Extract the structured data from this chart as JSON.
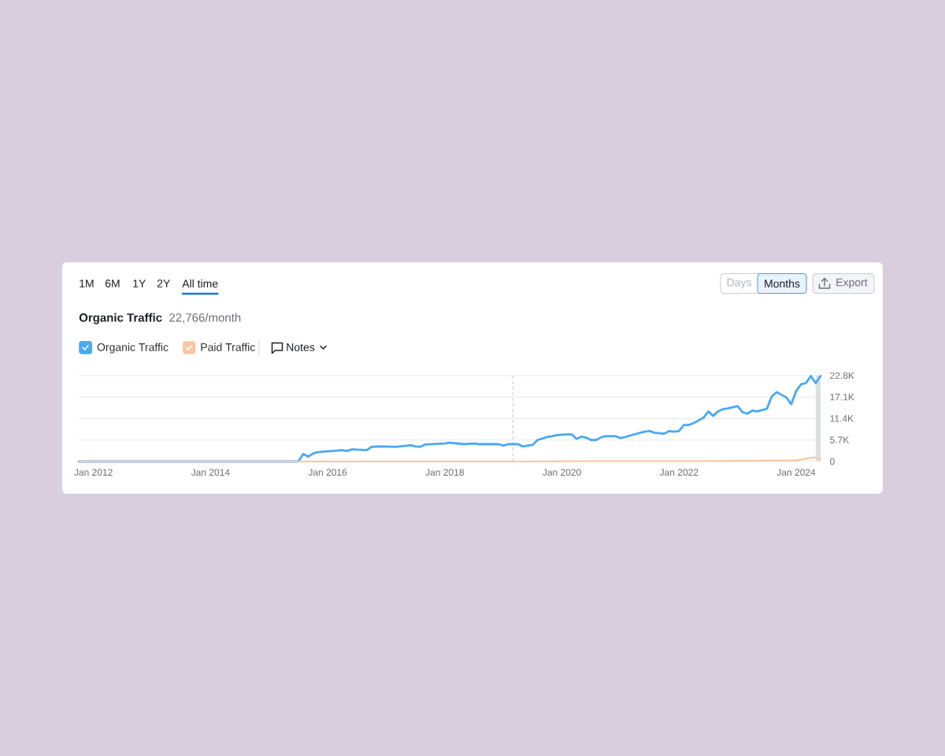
{
  "chart_data": {
    "type": "line",
    "title": "Organic Traffic",
    "subtitle": "22,766/month",
    "annotations": [
      "1M",
      "6M",
      "1Y",
      "2Y",
      "All time",
      "Days",
      "Months",
      "Export",
      "Notes"
    ],
    "xlim": [
      "2011-10",
      "2024-06"
    ],
    "xticks": [
      {
        "value": "2012-01",
        "label": "Jan 2012"
      },
      {
        "value": "2014-01",
        "label": "Jan 2014"
      },
      {
        "value": "2016-01",
        "label": "Jan 2016"
      },
      {
        "value": "2018-01",
        "label": "Jan 2018"
      },
      {
        "value": "2020-01",
        "label": "Jan 2020"
      },
      {
        "value": "2022-01",
        "label": "Jan 2022"
      },
      {
        "value": "2024-01",
        "label": "Jan 2024"
      }
    ],
    "ylim": [
      0,
      22800
    ],
    "yticks": [
      0,
      {
        "value": 5700,
        "label": "5.7K"
      },
      {
        "value": 11400,
        "label": "11.4K"
      },
      {
        "value": 17100,
        "label": "17.1K"
      },
      {
        "value": 22800,
        "label": "22.8K"
      }
    ],
    "grid": "y",
    "legend": "top left",
    "series": [
      {
        "name": "Organic Traffic",
        "color": "#4aa9f4",
        "x": [
          "2011-10",
          "2015-07",
          "2015-08",
          "2015-09",
          "2015-10",
          "2015-11",
          "2016-01",
          "2016-03",
          "2016-04",
          "2016-05",
          "2016-06",
          "2016-09",
          "2016-10",
          "2016-12",
          "2017-03",
          "2017-06",
          "2017-07",
          "2017-08",
          "2017-09",
          "2018-01",
          "2018-02",
          "2018-05",
          "2018-07",
          "2018-08",
          "2018-12",
          "2019-01",
          "2019-02",
          "2019-04",
          "2019-05",
          "2019-07",
          "2019-08",
          "2019-10",
          "2019-11",
          "2019-12",
          "2020-02",
          "2020-03",
          "2020-04",
          "2020-05",
          "2020-06",
          "2020-07",
          "2020-08",
          "2020-09",
          "2020-10",
          "2020-12",
          "2021-01",
          "2021-02",
          "2021-03",
          "2021-05",
          "2021-06",
          "2021-07",
          "2021-08",
          "2021-10",
          "2021-11",
          "2021-12",
          "2022-01",
          "2022-02",
          "2022-03",
          "2022-04",
          "2022-05",
          "2022-06",
          "2022-07",
          "2022-08",
          "2022-09",
          "2022-10",
          "2022-11",
          "2023-01",
          "2023-02",
          "2023-03",
          "2023-04",
          "2023-05",
          "2023-07",
          "2023-08",
          "2023-09",
          "2023-10",
          "2023-11",
          "2023-12",
          "2024-01",
          "2024-02",
          "2024-03",
          "2024-04",
          "2024-05",
          "2024-06"
        ],
        "values": [
          0,
          0,
          2000,
          1300,
          2100,
          2500,
          2700,
          2900,
          3000,
          2800,
          3200,
          3000,
          3900,
          4000,
          3900,
          4300,
          4000,
          3900,
          4500,
          4800,
          5000,
          4600,
          4800,
          4600,
          4600,
          4200,
          4600,
          4600,
          4000,
          4400,
          5700,
          6500,
          6700,
          7000,
          7200,
          7200,
          6000,
          6600,
          6300,
          5700,
          5700,
          6400,
          6700,
          6700,
          6200,
          6500,
          6900,
          7600,
          7900,
          8100,
          7600,
          7400,
          8100,
          7900,
          8100,
          9700,
          9700,
          10200,
          10900,
          11600,
          13300,
          12100,
          13300,
          13900,
          14100,
          14700,
          13100,
          12700,
          13500,
          13300,
          14000,
          17300,
          18400,
          17700,
          17000,
          15200,
          18700,
          20500,
          20800,
          22700,
          20800,
          22700
        ]
      },
      {
        "name": "Paid Traffic",
        "color": "#f8c6a2",
        "x": [
          "2011-10",
          "2019-06",
          "2020-06",
          "2022-06",
          "2023-03",
          "2023-12",
          "2024-01",
          "2024-03",
          "2024-04",
          "2024-05",
          "2024-06"
        ],
        "values": [
          0,
          0,
          100,
          100,
          200,
          300,
          300,
          700,
          1000,
          1100,
          700
        ]
      }
    ],
    "ref_lines": [
      {
        "axis": "x",
        "value": "2019-03",
        "color": "#c3c7cc",
        "line_style": "dashed"
      }
    ],
    "bands": [
      {
        "axis": "x",
        "from": "2024-05",
        "to": "2024-06",
        "color": "#dde1e4"
      }
    ]
  }
}
